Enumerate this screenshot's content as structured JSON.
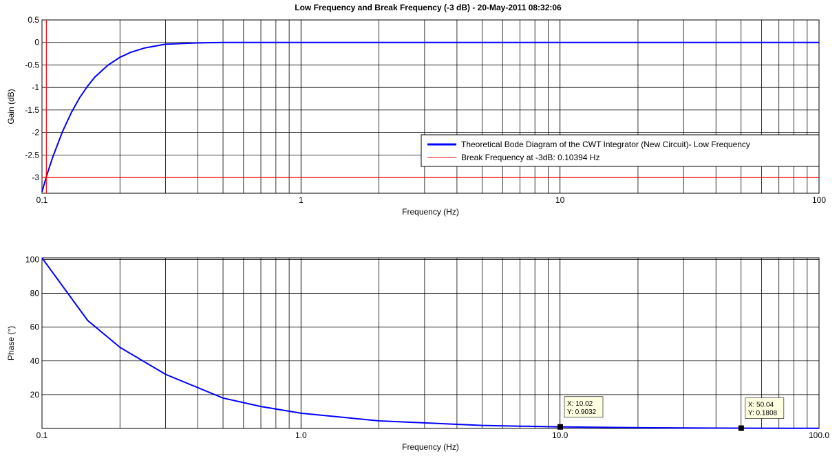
{
  "chart_data": [
    {
      "type": "line",
      "title": "Low Frequency and Break Frequency (-3 dB) - 20-May-2011 08:32:06",
      "xlabel": "Frequency (Hz)",
      "ylabel": "Gain (dB)",
      "xscale": "log",
      "xlim": [
        0.1,
        100
      ],
      "ylim": [
        -3.35,
        0.5
      ],
      "xticks": [
        0.1,
        1,
        10,
        100
      ],
      "xticklabels": [
        "0.1",
        "1",
        "10",
        "100"
      ],
      "yticks": [
        0.5,
        0,
        -0.5,
        -1,
        -1.5,
        -2,
        -2.5,
        -3
      ],
      "yticklabels": [
        "0.5",
        "0",
        "-0.5",
        "-1",
        "-1.5",
        "-2",
        "-2.5",
        "-3"
      ],
      "grid": true,
      "legend_position": "right",
      "series": [
        {
          "name": "Theoretical Bode Diagram of the CWT Integrator (New Circuit)- Low Frequency",
          "color": "#0000ff",
          "x": [
            0.1,
            0.105,
            0.11,
            0.12,
            0.13,
            0.14,
            0.15,
            0.16,
            0.18,
            0.2,
            0.22,
            0.25,
            0.3,
            0.4,
            0.5,
            1,
            2,
            5,
            10,
            20,
            50,
            100
          ],
          "y": [
            -3.32,
            -2.9,
            -2.55,
            -1.98,
            -1.55,
            -1.22,
            -0.97,
            -0.77,
            -0.5,
            -0.33,
            -0.22,
            -0.12,
            -0.04,
            -0.01,
            0,
            0,
            0,
            0,
            0,
            0,
            0,
            0
          ]
        },
        {
          "name": "Break Frequency at -3dB:  0.10394  Hz",
          "color": "#ff0000",
          "x": [
            0.1,
            100
          ],
          "y": [
            -3,
            -3
          ],
          "vertical_x": 0.10394
        }
      ]
    },
    {
      "type": "line",
      "title": "",
      "xlabel": "Frequency (Hz)",
      "ylabel": "Phase (°)",
      "xscale": "log",
      "xlim": [
        0.1,
        100
      ],
      "ylim": [
        0,
        101
      ],
      "xticks": [
        0.1,
        1,
        10,
        100
      ],
      "xticklabels": [
        "0.1",
        "1.0",
        "10.0",
        "100.0"
      ],
      "yticks": [
        100,
        80,
        60,
        40,
        20
      ],
      "yticklabels": [
        "100",
        "80",
        "60",
        "40",
        "20"
      ],
      "grid": true,
      "series": [
        {
          "color": "#0000ff",
          "x": [
            0.1,
            0.15,
            0.2,
            0.3,
            0.5,
            0.7,
            1,
            2,
            5,
            10,
            20,
            50,
            100
          ],
          "y": [
            101,
            64,
            48,
            32,
            18,
            13,
            9,
            4.5,
            1.8,
            0.9,
            0.45,
            0.18,
            0.09
          ]
        }
      ],
      "annotations": [
        {
          "x": 10.02,
          "y": 0.9032,
          "line1": "X: 10.02",
          "line2": "Y: 0.9032"
        },
        {
          "x": 50.04,
          "y": 0.1808,
          "line1": "X: 50.04",
          "line2": "Y: 0.1808"
        }
      ]
    }
  ]
}
